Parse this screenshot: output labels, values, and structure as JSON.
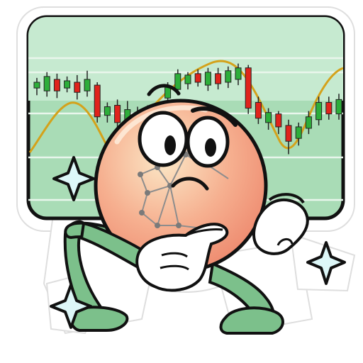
{
  "sticker": {
    "subject": "thinking-coin-mascot",
    "expression": "pondering"
  },
  "colors": {
    "outline": "#111111",
    "board_fill": "#a9dcb6",
    "board_stripe": "#c6ead0",
    "grid_line": "#e9f6ec",
    "candle_up": "#2dae3a",
    "candle_down": "#e0231b",
    "curve": "#d4a21b",
    "coin_light": "#fbe7c6",
    "coin_mid": "#f6b090",
    "coin_edge": "#ee8a6f",
    "limb_green": "#7cc08b",
    "glove_white": "#ffffff",
    "sparkle": "#ddf7f8"
  },
  "chart_candles": [
    {
      "d": 1,
      "o": 62,
      "c": 66,
      "h": 69,
      "l": 57
    },
    {
      "d": 1,
      "o": 60,
      "c": 70,
      "h": 73,
      "l": 56
    },
    {
      "d": -1,
      "o": 68,
      "c": 60,
      "h": 72,
      "l": 55
    },
    {
      "d": 1,
      "o": 62,
      "c": 67,
      "h": 70,
      "l": 59
    },
    {
      "d": -1,
      "o": 66,
      "c": 59,
      "h": 71,
      "l": 54
    },
    {
      "d": 1,
      "o": 60,
      "c": 68,
      "h": 74,
      "l": 56
    },
    {
      "d": -1,
      "o": 64,
      "c": 42,
      "h": 66,
      "l": 38
    },
    {
      "d": 1,
      "o": 43,
      "c": 49,
      "h": 52,
      "l": 38
    },
    {
      "d": -1,
      "o": 50,
      "c": 38,
      "h": 54,
      "l": 33
    },
    {
      "d": 1,
      "o": 39,
      "c": 47,
      "h": 53,
      "l": 35
    },
    {
      "d": -1,
      "o": 45,
      "c": 35,
      "h": 49,
      "l": 31
    },
    {
      "d": 1,
      "o": 36,
      "c": 46,
      "h": 50,
      "l": 32
    },
    {
      "d": -1,
      "o": 44,
      "c": 33,
      "h": 48,
      "l": 29
    },
    {
      "d": 1,
      "o": 55,
      "c": 63,
      "h": 66,
      "l": 51
    },
    {
      "d": 1,
      "o": 61,
      "c": 72,
      "h": 75,
      "l": 57
    },
    {
      "d": 1,
      "o": 65,
      "c": 71,
      "h": 73,
      "l": 61
    },
    {
      "d": -1,
      "o": 72,
      "c": 66,
      "h": 75,
      "l": 63
    },
    {
      "d": 1,
      "o": 64,
      "c": 73,
      "h": 76,
      "l": 60
    },
    {
      "d": -1,
      "o": 72,
      "c": 65,
      "h": 76,
      "l": 61
    },
    {
      "d": 1,
      "o": 66,
      "c": 74,
      "h": 77,
      "l": 62
    },
    {
      "d": 1,
      "o": 68,
      "c": 76,
      "h": 79,
      "l": 64
    },
    {
      "d": -1,
      "o": 76,
      "c": 48,
      "h": 78,
      "l": 44
    },
    {
      "d": -1,
      "o": 52,
      "c": 41,
      "h": 56,
      "l": 37
    },
    {
      "d": 1,
      "o": 38,
      "c": 45,
      "h": 48,
      "l": 33
    },
    {
      "d": -1,
      "o": 44,
      "c": 35,
      "h": 46,
      "l": 30
    },
    {
      "d": -1,
      "o": 36,
      "c": 25,
      "h": 40,
      "l": 16
    },
    {
      "d": 1,
      "o": 27,
      "c": 35,
      "h": 38,
      "l": 22
    },
    {
      "d": 1,
      "o": 34,
      "c": 42,
      "h": 46,
      "l": 30
    },
    {
      "d": 1,
      "o": 40,
      "c": 52,
      "h": 56,
      "l": 36
    },
    {
      "d": -1,
      "o": 52,
      "c": 44,
      "h": 56,
      "l": 40
    },
    {
      "d": 1,
      "o": 44,
      "c": 54,
      "h": 58,
      "l": 40
    }
  ]
}
